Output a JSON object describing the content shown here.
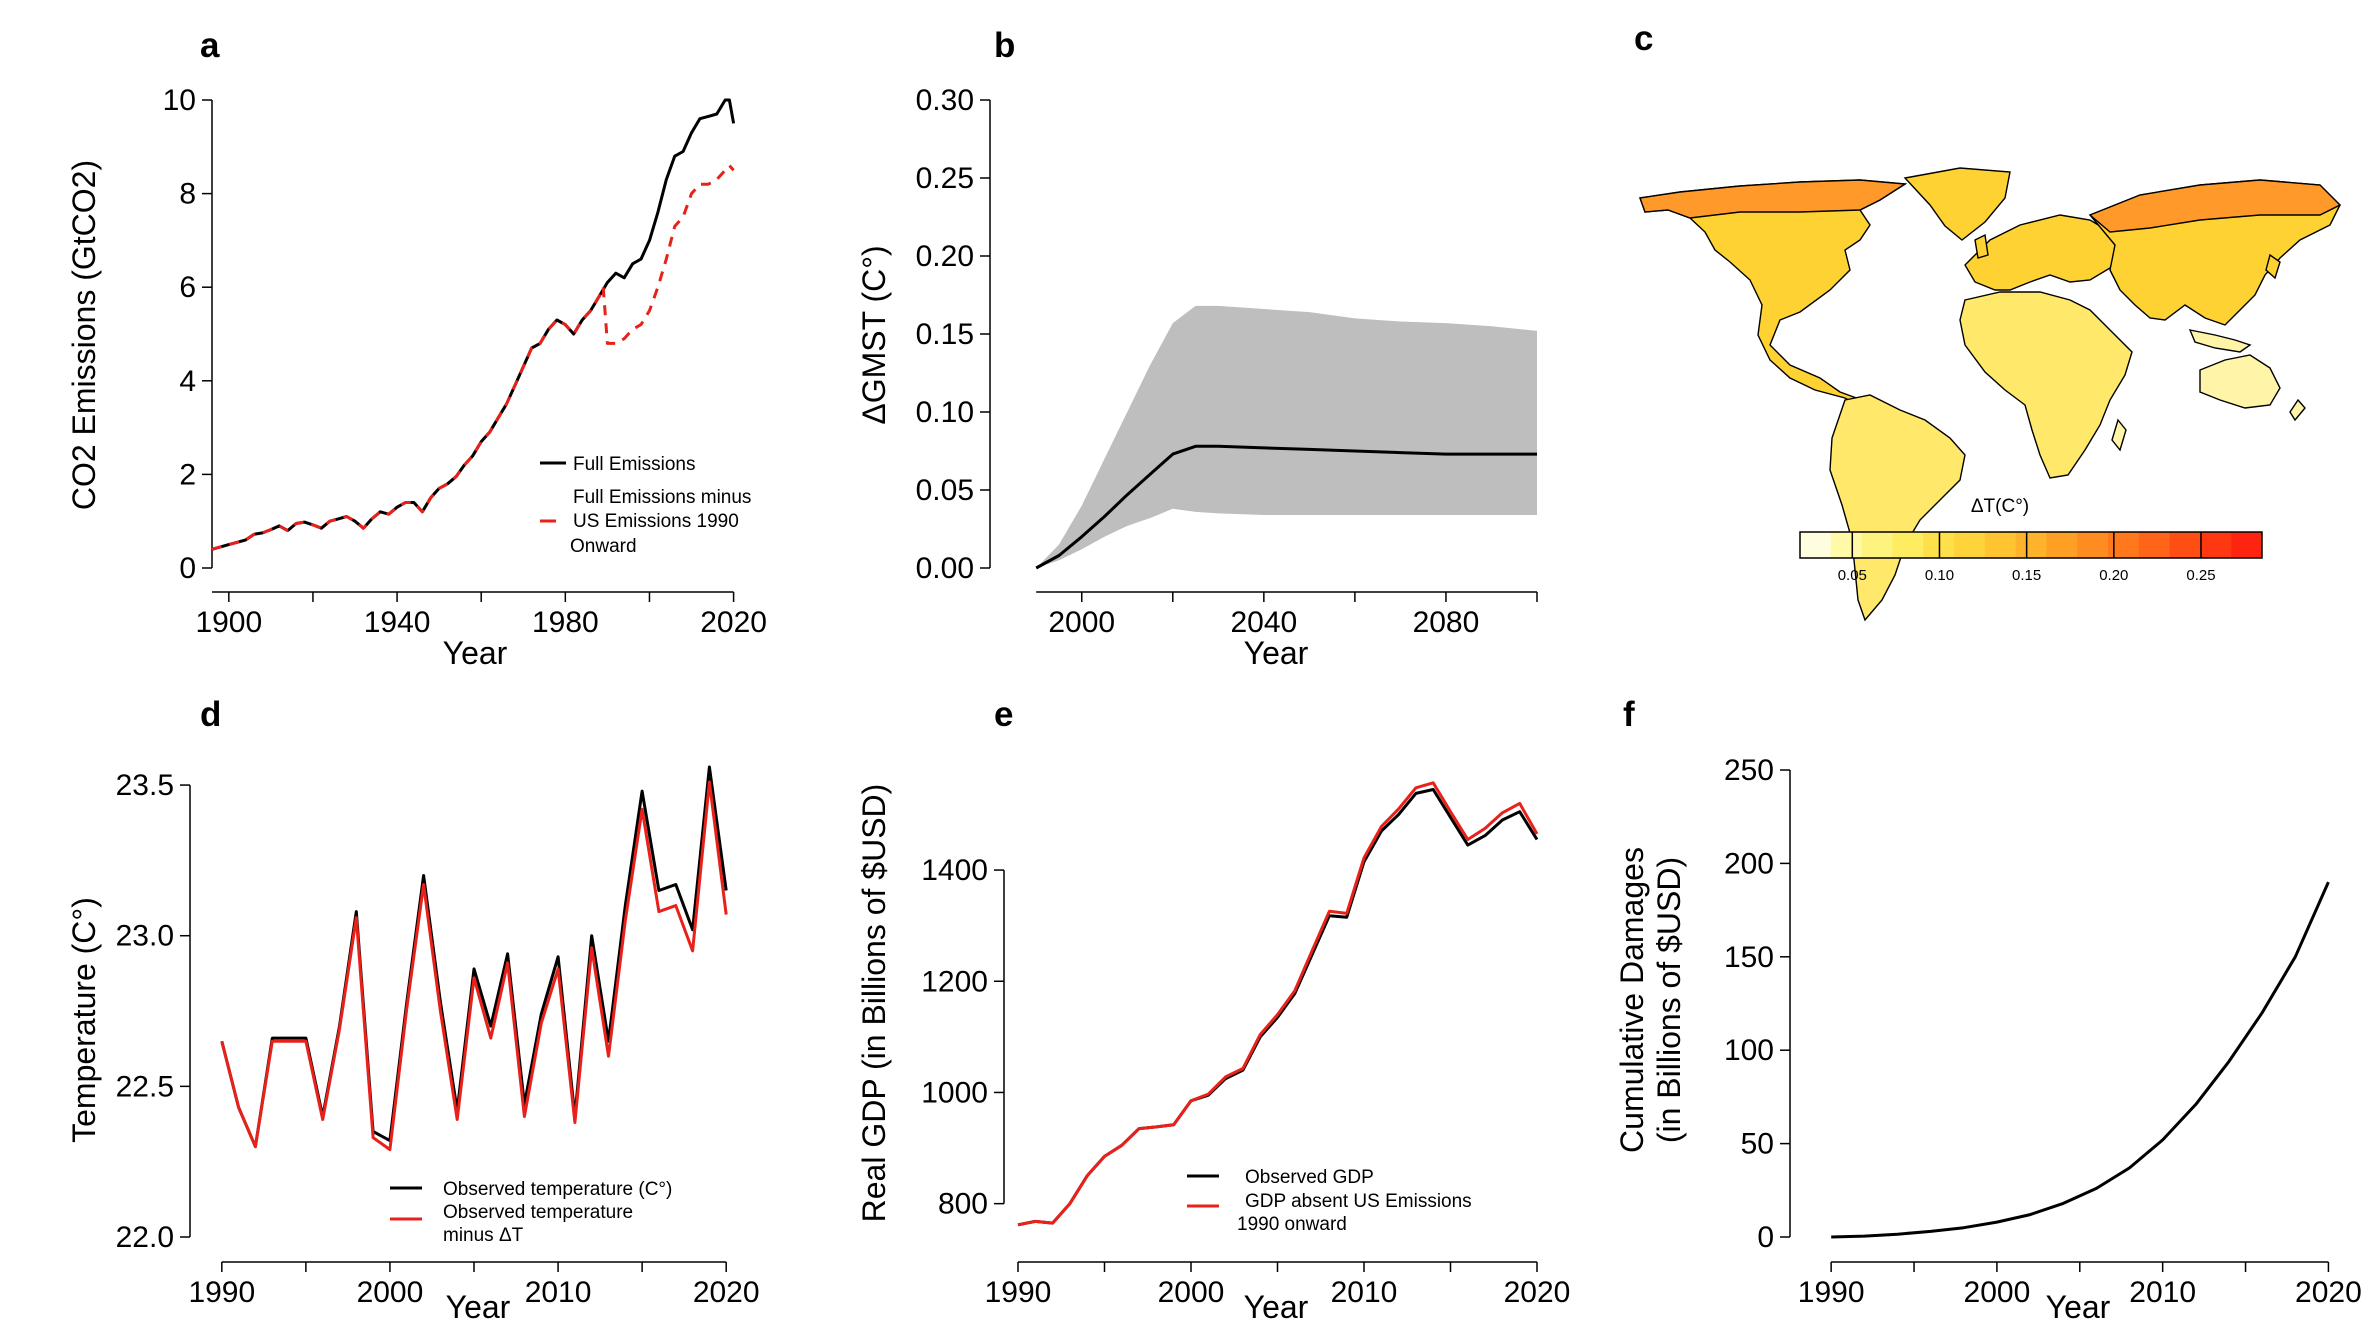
{
  "chart_data": [
    {
      "panel": "a",
      "type": "line",
      "xlabel": "Year",
      "ylabel": "CO2 Emissions (GtCO2)",
      "xlim": [
        1896,
        2022
      ],
      "ylim": [
        0,
        10
      ],
      "xticks": [
        1900,
        1940,
        1980,
        2020
      ],
      "yticks": [
        0,
        2,
        4,
        6,
        8,
        10
      ],
      "legend_position": "bottom-right",
      "series": [
        {
          "name": "Full Emissions",
          "color": "#000000",
          "dash": false,
          "x": [
            1896,
            1898,
            1900,
            1902,
            1904,
            1906,
            1908,
            1910,
            1912,
            1914,
            1916,
            1918,
            1920,
            1922,
            1924,
            1926,
            1928,
            1930,
            1932,
            1934,
            1936,
            1938,
            1940,
            1942,
            1944,
            1946,
            1948,
            1950,
            1952,
            1954,
            1956,
            1958,
            1960,
            1962,
            1964,
            1966,
            1968,
            1970,
            1972,
            1974,
            1976,
            1978,
            1980,
            1982,
            1984,
            1986,
            1988,
            1990,
            1992,
            1994,
            1996,
            1998,
            2000,
            2002,
            2004,
            2006,
            2008,
            2010,
            2012,
            2014,
            2016,
            2018,
            2019,
            2020
          ],
          "y": [
            0.4,
            0.45,
            0.5,
            0.55,
            0.6,
            0.72,
            0.75,
            0.82,
            0.9,
            0.8,
            0.95,
            0.98,
            0.92,
            0.85,
            1.0,
            1.05,
            1.1,
            1.0,
            0.85,
            1.05,
            1.2,
            1.15,
            1.3,
            1.4,
            1.4,
            1.2,
            1.5,
            1.7,
            1.8,
            1.95,
            2.2,
            2.4,
            2.7,
            2.9,
            3.2,
            3.5,
            3.9,
            4.3,
            4.7,
            4.8,
            5.1,
            5.3,
            5.2,
            5.0,
            5.3,
            5.5,
            5.8,
            6.1,
            6.3,
            6.2,
            6.5,
            6.6,
            7.0,
            7.6,
            8.3,
            8.8,
            8.9,
            9.3,
            9.6,
            9.65,
            9.7,
            10.0,
            10.0,
            9.5
          ]
        },
        {
          "name": "Full Emissions minus US Emissions 1990 Onward",
          "color": "#e8211b",
          "dash": true,
          "x": [
            1896,
            1898,
            1900,
            1902,
            1904,
            1906,
            1908,
            1910,
            1912,
            1914,
            1916,
            1918,
            1920,
            1922,
            1924,
            1926,
            1928,
            1930,
            1932,
            1934,
            1936,
            1938,
            1940,
            1942,
            1944,
            1946,
            1948,
            1950,
            1952,
            1954,
            1956,
            1958,
            1960,
            1962,
            1964,
            1966,
            1968,
            1970,
            1972,
            1974,
            1976,
            1978,
            1980,
            1982,
            1984,
            1986,
            1988,
            1989,
            1990,
            1992,
            1994,
            1996,
            1998,
            2000,
            2002,
            2004,
            2006,
            2008,
            2010,
            2012,
            2014,
            2016,
            2018,
            2019,
            2020
          ],
          "y": [
            0.4,
            0.45,
            0.5,
            0.55,
            0.6,
            0.72,
            0.75,
            0.82,
            0.9,
            0.8,
            0.95,
            0.98,
            0.92,
            0.85,
            1.0,
            1.05,
            1.1,
            1.0,
            0.85,
            1.05,
            1.2,
            1.15,
            1.3,
            1.4,
            1.4,
            1.2,
            1.5,
            1.7,
            1.8,
            1.95,
            2.2,
            2.4,
            2.7,
            2.9,
            3.2,
            3.5,
            3.9,
            4.3,
            4.7,
            4.8,
            5.1,
            5.3,
            5.2,
            5.0,
            5.3,
            5.5,
            5.8,
            6.0,
            4.8,
            4.8,
            4.9,
            5.1,
            5.2,
            5.5,
            6.0,
            6.6,
            7.3,
            7.5,
            8.0,
            8.2,
            8.2,
            8.3,
            8.5,
            8.6,
            8.5
          ]
        }
      ]
    },
    {
      "panel": "b",
      "type": "area",
      "xlabel": "Year",
      "ylabel": "ΔGMST (C°)",
      "xlim": [
        1986,
        2100
      ],
      "ylim": [
        0,
        0.3
      ],
      "xticks": [
        2000,
        2040,
        2080
      ],
      "yticks": [
        "0.00",
        "0.05",
        "0.10",
        "0.15",
        "0.20",
        "0.25",
        "0.30"
      ],
      "band_color": "#bebebe",
      "band": {
        "x": [
          1990,
          1995,
          2000,
          2005,
          2010,
          2015,
          2020,
          2025,
          2030,
          2040,
          2050,
          2060,
          2070,
          2080,
          2090,
          2100
        ],
        "lower": [
          0,
          0.005,
          0.012,
          0.02,
          0.027,
          0.032,
          0.038,
          0.036,
          0.035,
          0.034,
          0.034,
          0.034,
          0.034,
          0.034,
          0.034,
          0.034
        ],
        "upper": [
          0,
          0.015,
          0.04,
          0.07,
          0.1,
          0.13,
          0.157,
          0.168,
          0.168,
          0.166,
          0.164,
          0.16,
          0.158,
          0.157,
          0.155,
          0.152
        ]
      },
      "series": [
        {
          "color": "#000000",
          "x": [
            1990,
            1995,
            2000,
            2005,
            2010,
            2015,
            2020,
            2025,
            2030,
            2040,
            2050,
            2060,
            2070,
            2080,
            2090,
            2100
          ],
          "y": [
            0,
            0.008,
            0.02,
            0.033,
            0.047,
            0.06,
            0.073,
            0.078,
            0.078,
            0.077,
            0.076,
            0.075,
            0.074,
            0.073,
            0.073,
            0.073
          ]
        }
      ]
    },
    {
      "panel": "c",
      "type": "heatmap",
      "colorbar_label": "ΔT(C°)",
      "colorbar_ticks": [
        "0.05",
        "0.10",
        "0.15",
        "0.20",
        "0.25"
      ],
      "colorbar_colors": [
        "#fffde0",
        "#fff9a8",
        "#fff380",
        "#ffec60",
        "#ffe04a",
        "#ffd33a",
        "#ffc430",
        "#ffb32a",
        "#ffa024",
        "#ff8c20",
        "#ff781c",
        "#ff6418",
        "#ff4e14",
        "#ff3812",
        "#ff2410"
      ],
      "map_colors": {
        "north": "#ff9a2a",
        "mid": "#ffd233",
        "equator": "#ffe86a",
        "pale": "#fff4a8"
      }
    },
    {
      "panel": "d",
      "type": "line",
      "xlabel": "Year",
      "ylabel": "Temperature (C°)",
      "xlim": [
        1989,
        2021
      ],
      "ylim": [
        22.0,
        23.55
      ],
      "xticks": [
        1990,
        2000,
        2010,
        2020
      ],
      "yticks": [
        "22.0",
        "22.5",
        "23.0",
        "23.5"
      ],
      "legend_position": "bottom-right",
      "series": [
        {
          "name": "Observed temperature (C°)",
          "color": "#000000",
          "x": [
            1990,
            1991,
            1992,
            1993,
            1994,
            1995,
            1996,
            1997,
            1998,
            1999,
            2000,
            2001,
            2002,
            2003,
            2004,
            2005,
            2006,
            2007,
            2008,
            2009,
            2010,
            2011,
            2012,
            2013,
            2014,
            2015,
            2016,
            2017,
            2018,
            2019,
            2020
          ],
          "y": [
            22.65,
            22.43,
            22.3,
            22.66,
            22.66,
            22.66,
            22.4,
            22.7,
            23.08,
            22.35,
            22.32,
            22.78,
            23.2,
            22.78,
            22.42,
            22.89,
            22.7,
            22.94,
            22.44,
            22.74,
            22.93,
            22.4,
            23.0,
            22.65,
            23.1,
            23.48,
            23.15,
            23.17,
            23.02,
            23.56,
            23.15
          ]
        },
        {
          "name": "Observed temperature minus ΔT",
          "color": "#e8211b",
          "x": [
            1990,
            1991,
            1992,
            1993,
            1994,
            1995,
            1996,
            1997,
            1998,
            1999,
            2000,
            2001,
            2002,
            2003,
            2004,
            2005,
            2006,
            2007,
            2008,
            2009,
            2010,
            2011,
            2012,
            2013,
            2014,
            2015,
            2016,
            2017,
            2018,
            2019,
            2020
          ],
          "y": [
            22.65,
            22.43,
            22.3,
            22.65,
            22.65,
            22.65,
            22.39,
            22.69,
            23.06,
            22.33,
            22.29,
            22.76,
            23.17,
            22.75,
            22.39,
            22.86,
            22.66,
            22.91,
            22.4,
            22.71,
            22.89,
            22.38,
            22.96,
            22.6,
            23.05,
            23.42,
            23.08,
            23.1,
            22.95,
            23.51,
            23.07
          ]
        }
      ]
    },
    {
      "panel": "e",
      "type": "line",
      "xlabel": "Year",
      "ylabel": "Real GDP (in Billions of $USD)",
      "xlim": [
        1990,
        2020
      ],
      "ylim": [
        740,
        1580
      ],
      "xticks": [
        1990,
        2000,
        2010,
        2020
      ],
      "yticks": [
        800,
        1000,
        1200,
        1400
      ],
      "legend_position": "bottom-right",
      "series": [
        {
          "name": "Observed GDP",
          "color": "#000000",
          "x": [
            1990,
            1991,
            1992,
            1993,
            1994,
            1995,
            1996,
            1997,
            1998,
            1999,
            2000,
            2001,
            2002,
            2003,
            2004,
            2005,
            2006,
            2007,
            2008,
            2009,
            2010,
            2011,
            2012,
            2013,
            2014,
            2015,
            2016,
            2017,
            2018,
            2019,
            2020
          ],
          "y": [
            762,
            768,
            765,
            800,
            850,
            885,
            905,
            935,
            938,
            942,
            985,
            995,
            1025,
            1040,
            1100,
            1135,
            1178,
            1248,
            1318,
            1315,
            1415,
            1470,
            1500,
            1538,
            1545,
            1495,
            1445,
            1462,
            1490,
            1505,
            1455
          ]
        },
        {
          "name": "GDP absent US Emissions 1990 onward",
          "color": "#e8211b",
          "x": [
            1990,
            1991,
            1992,
            1993,
            1994,
            1995,
            1996,
            1997,
            1998,
            1999,
            2000,
            2001,
            2002,
            2003,
            2004,
            2005,
            2006,
            2007,
            2008,
            2009,
            2010,
            2011,
            2012,
            2013,
            2014,
            2015,
            2016,
            2017,
            2018,
            2019,
            2020
          ],
          "y": [
            762,
            768,
            765,
            800,
            850,
            885,
            905,
            935,
            938,
            942,
            985,
            997,
            1028,
            1043,
            1104,
            1140,
            1183,
            1255,
            1326,
            1322,
            1422,
            1478,
            1510,
            1548,
            1557,
            1505,
            1455,
            1475,
            1503,
            1520,
            1465
          ]
        }
      ]
    },
    {
      "panel": "f",
      "type": "line",
      "xlabel": "Year",
      "ylabel": "Cumulative Damages (in Billions of $USD)",
      "xlim": [
        1988,
        2021
      ],
      "ylim": [
        0,
        250
      ],
      "xticks": [
        1990,
        2000,
        2010,
        2020
      ],
      "yticks": [
        0,
        50,
        100,
        150,
        200,
        250
      ],
      "series": [
        {
          "color": "#000000",
          "x": [
            1990,
            1992,
            1994,
            1996,
            1998,
            2000,
            2002,
            2004,
            2006,
            2008,
            2010,
            2012,
            2014,
            2016,
            2018,
            2020
          ],
          "y": [
            0,
            0.5,
            1.5,
            3,
            5,
            8,
            12,
            18,
            26,
            37,
            52,
            71,
            94,
            120,
            150,
            190
          ]
        }
      ]
    }
  ],
  "panels": {
    "a": {
      "letter": "a",
      "ylabel": "CO2 Emissions (GtCO2)",
      "xlabel": "Year",
      "legend": [
        "Full Emissions",
        "Full Emissions minus",
        "US Emissions 1990",
        "Onward"
      ]
    },
    "b": {
      "letter": "b",
      "ylabel": "ΔGMST (C°)",
      "xlabel": "Year"
    },
    "c": {
      "letter": "c",
      "colorbar_label": "ΔT(C°)"
    },
    "d": {
      "letter": "d",
      "ylabel": "Temperature (C°)",
      "xlabel": "Year",
      "legend": [
        "Observed temperature (C°)",
        "Observed temperature",
        "minus ΔT"
      ]
    },
    "e": {
      "letter": "e",
      "ylabel": "Real GDP (in Billions of $USD)",
      "xlabel": "Year",
      "legend": [
        "Observed GDP",
        "GDP absent US Emissions",
        "1990 onward"
      ]
    },
    "f": {
      "letter": "f",
      "ylabel_line1": "Cumulative Damages",
      "ylabel_line2": "(in Billions of $USD)",
      "xlabel": "Year"
    }
  }
}
